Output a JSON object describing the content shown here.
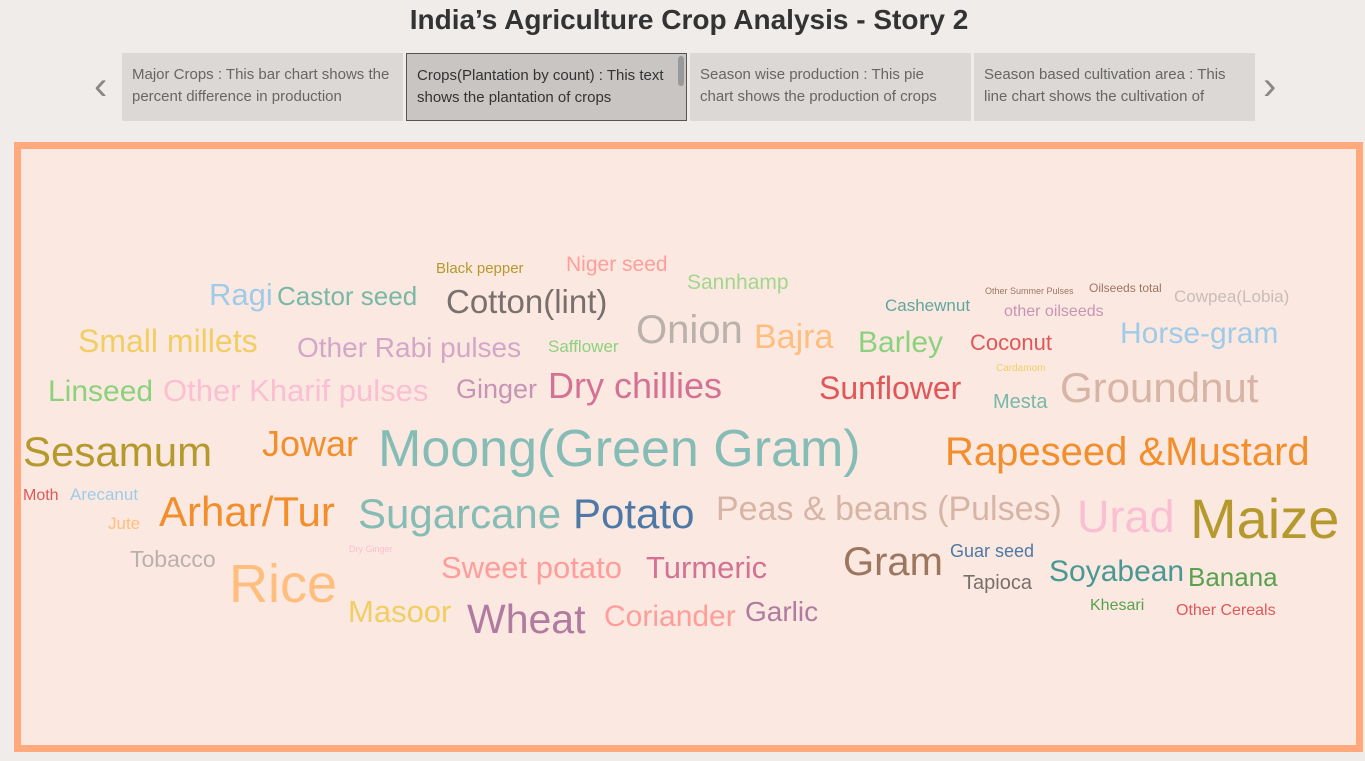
{
  "header": {
    "title": "India’s Agriculture Crop Analysis - Story 2"
  },
  "story_points": [
    {
      "caption": "Major Crops : This bar chart shows the percent difference in production",
      "selected": false
    },
    {
      "caption": "Crops(Plantation by count) : This text shows the plantation of crops",
      "selected": true
    },
    {
      "caption": "Season wise production : This pie chart shows the production of crops",
      "selected": false
    },
    {
      "caption": "Season based cultivation area : This line chart shows the cultivation of",
      "selected": false
    }
  ],
  "word_cloud": {
    "words": [
      {
        "text": "Black pepper",
        "color": "#b6992d"
      },
      {
        "text": "Niger seed",
        "color": "#ff9d9a"
      },
      {
        "text": "Sannhamp",
        "color": "#a3d68c"
      },
      {
        "text": "Ragi",
        "color": "#a0cbe8"
      },
      {
        "text": "Castor seed",
        "color": "#79b7a7"
      },
      {
        "text": "Cotton(lint)",
        "color": "#79706e"
      },
      {
        "text": "Cashewnut",
        "color": "#5fa69d"
      },
      {
        "text": "Other Summer Pulses",
        "color": "#9d7660"
      },
      {
        "text": "Oilseeds total",
        "color": "#9d7660"
      },
      {
        "text": "Cowpea(Lobia)",
        "color": "#c8bcb6"
      },
      {
        "text": "other oilseeds",
        "color": "#c894b5"
      },
      {
        "text": "Onion",
        "color": "#bab0ac"
      },
      {
        "text": "Bajra",
        "color": "#ffbe7d"
      },
      {
        "text": "Barley",
        "color": "#8cd17d"
      },
      {
        "text": "Coconut",
        "color": "#e15759"
      },
      {
        "text": "Horse-gram",
        "color": "#a0cbe8"
      },
      {
        "text": "Small millets",
        "color": "#f1ce63"
      },
      {
        "text": "Other Rabi pulses",
        "color": "#d4a6c8"
      },
      {
        "text": "Safflower",
        "color": "#8cd17d"
      },
      {
        "text": "Cardamom",
        "color": "#f1ce63"
      },
      {
        "text": "Linseed",
        "color": "#8cd17d"
      },
      {
        "text": "Other Kharif pulses",
        "color": "#fabfd2"
      },
      {
        "text": "Ginger",
        "color": "#c894b5"
      },
      {
        "text": "Dry chillies",
        "color": "#d37295"
      },
      {
        "text": "Sunflower",
        "color": "#e15759"
      },
      {
        "text": "Mesta",
        "color": "#79b7a7"
      },
      {
        "text": "Groundnut",
        "color": "#d7b5a6"
      },
      {
        "text": "Sesamum",
        "color": "#b6992d"
      },
      {
        "text": "Jowar",
        "color": "#f28e2b"
      },
      {
        "text": "Moong(Green Gram)",
        "color": "#86bcb6"
      },
      {
        "text": "Rapeseed &Mustard",
        "color": "#f28e2b"
      },
      {
        "text": "Moth",
        "color": "#e15759"
      },
      {
        "text": "Arecanut",
        "color": "#a0cbe8"
      },
      {
        "text": "Jute",
        "color": "#ffbe7d"
      },
      {
        "text": "Arhar/Tur",
        "color": "#f28e2b"
      },
      {
        "text": "Sugarcane",
        "color": "#86bcb6"
      },
      {
        "text": "Potato",
        "color": "#4e79a7"
      },
      {
        "text": "Peas & beans (Pulses)",
        "color": "#d7b5a6"
      },
      {
        "text": "Urad",
        "color": "#fabfd2"
      },
      {
        "text": "Maize",
        "color": "#b6992d"
      },
      {
        "text": "Dry Ginger",
        "color": "#fabfd2"
      },
      {
        "text": "Tobacco",
        "color": "#bab0ac"
      },
      {
        "text": "Rice",
        "color": "#ffbe7d"
      },
      {
        "text": "Sweet potato",
        "color": "#ff9d9a"
      },
      {
        "text": "Turmeric",
        "color": "#d37295"
      },
      {
        "text": "Gram",
        "color": "#9d7660"
      },
      {
        "text": "Guar seed",
        "color": "#4e79a7"
      },
      {
        "text": "Tapioca",
        "color": "#79706e"
      },
      {
        "text": "Soyabean",
        "color": "#499894"
      },
      {
        "text": "Banana",
        "color": "#59a14f"
      },
      {
        "text": "Masoor",
        "color": "#f1ce63"
      },
      {
        "text": "Wheat",
        "color": "#b07aa1"
      },
      {
        "text": "Coriander",
        "color": "#ff9d9a"
      },
      {
        "text": "Garlic",
        "color": "#b07aa1"
      },
      {
        "text": "Khesari",
        "color": "#59a14f"
      },
      {
        "text": "Other Cereals",
        "color": "#e15759"
      }
    ]
  }
}
